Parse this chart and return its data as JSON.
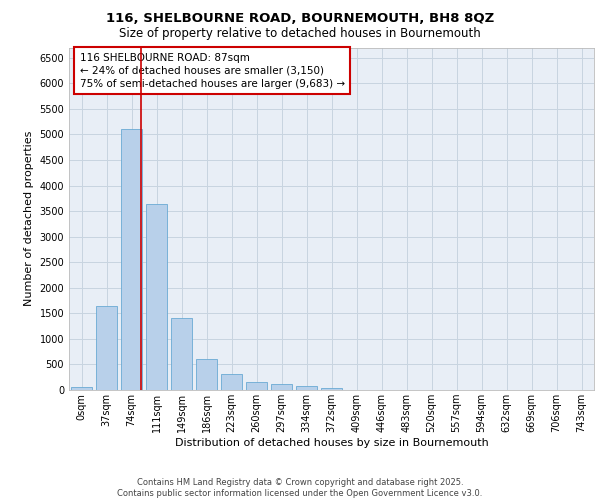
{
  "title_line1": "116, SHELBOURNE ROAD, BOURNEMOUTH, BH8 8QZ",
  "title_line2": "Size of property relative to detached houses in Bournemouth",
  "xlabel": "Distribution of detached houses by size in Bournemouth",
  "ylabel": "Number of detached properties",
  "footer_line1": "Contains HM Land Registry data © Crown copyright and database right 2025.",
  "footer_line2": "Contains public sector information licensed under the Open Government Licence v3.0.",
  "bar_labels": [
    "0sqm",
    "37sqm",
    "74sqm",
    "111sqm",
    "149sqm",
    "186sqm",
    "223sqm",
    "260sqm",
    "297sqm",
    "334sqm",
    "372sqm",
    "409sqm",
    "446sqm",
    "483sqm",
    "520sqm",
    "557sqm",
    "594sqm",
    "632sqm",
    "669sqm",
    "706sqm",
    "743sqm"
  ],
  "bar_values": [
    60,
    1650,
    5100,
    3630,
    1400,
    610,
    310,
    150,
    110,
    75,
    40,
    0,
    0,
    0,
    0,
    0,
    0,
    0,
    0,
    0,
    0
  ],
  "bar_color": "#b8d0ea",
  "bar_edge_color": "#6aaad4",
  "grid_color": "#c8d4e0",
  "background_color": "#e8eef6",
  "vline_color": "#cc0000",
  "annotation_text": "116 SHELBOURNE ROAD: 87sqm\n← 24% of detached houses are smaller (3,150)\n75% of semi-detached houses are larger (9,683) →",
  "annotation_box_color": "#cc0000",
  "ylim": [
    0,
    6700
  ],
  "yticks": [
    0,
    500,
    1000,
    1500,
    2000,
    2500,
    3000,
    3500,
    4000,
    4500,
    5000,
    5500,
    6000,
    6500
  ],
  "title_fontsize": 9.5,
  "subtitle_fontsize": 8.5,
  "axis_label_fontsize": 8,
  "tick_fontsize": 7,
  "annotation_fontsize": 7.5,
  "footer_fontsize": 6
}
